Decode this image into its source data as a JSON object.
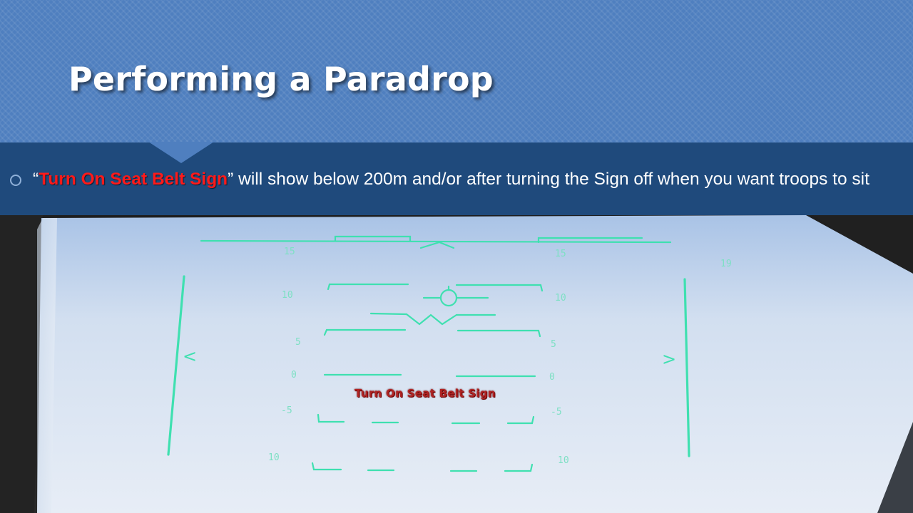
{
  "slide": {
    "title": "Performing a Paradrop",
    "bullet": {
      "open_quote": "“",
      "highlight": "Turn On Seat Belt Sign",
      "rest": "” will show below 200m and/or after turning the Sign off when you want troops to sit"
    }
  },
  "hud": {
    "message": "Turn On Seat Belt Sign",
    "heading_left": "15",
    "heading_right": "15",
    "heading_value": "19",
    "pitch_labels": {
      "p10": "10",
      "p5": "5",
      "p0": "0",
      "m5": "-5",
      "m10": "10"
    },
    "left_chevron": "<",
    "right_chevron": ">"
  },
  "colors": {
    "title_band": "#4f7fbf",
    "bullet_band": "#1f4a7c",
    "highlight_red": "#ff1a1a",
    "hud_green": "#3fe0b0",
    "hud_message": "#b02424"
  }
}
